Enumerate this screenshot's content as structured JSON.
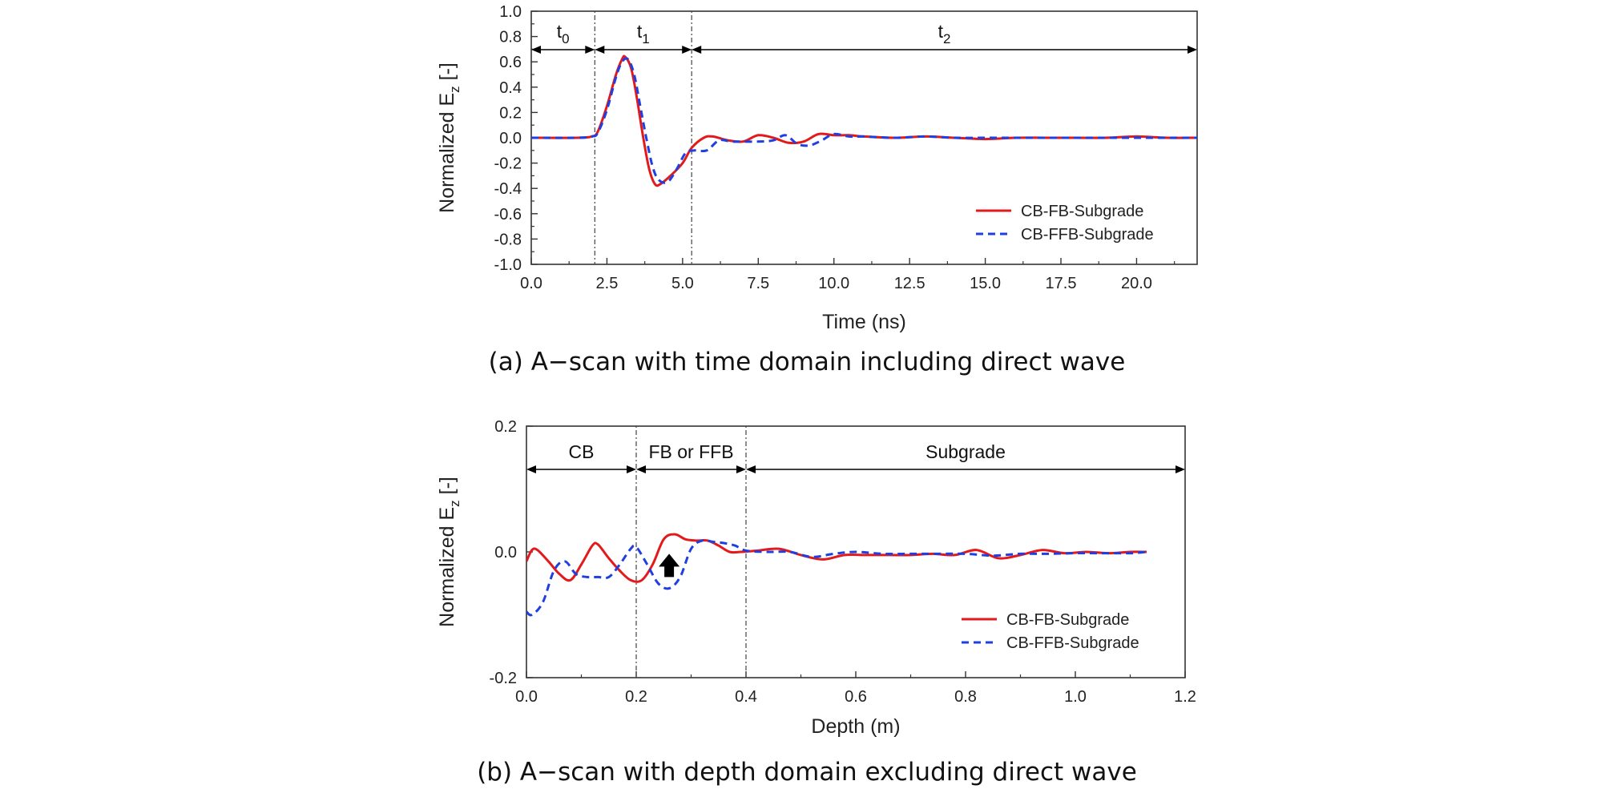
{
  "colors": {
    "series1": "#e31a1c",
    "series2": "#1f3fe0",
    "axis": "#333333",
    "arrow": "#000000"
  },
  "chart_data": [
    {
      "type": "line",
      "title": "",
      "caption": "(a) A−scan with time domain including direct wave",
      "xlabel": "Time (ns)",
      "ylabel_main": "Normalized E",
      "ylabel_sub": "z",
      "ylabel_tail": " [-]",
      "xlim": [
        0,
        22
      ],
      "ylim": [
        -1.0,
        1.0
      ],
      "x_ticks": [
        "0.0",
        "2.5",
        "5.0",
        "7.5",
        "10.0",
        "12.5",
        "15.0",
        "17.5",
        "20.0"
      ],
      "y_ticks": [
        "1.0",
        "0.8",
        "0.6",
        "0.4",
        "0.2",
        "0.0",
        "-0.2",
        "-0.4",
        "-0.6",
        "-0.8",
        "-1.0"
      ],
      "regions": [
        {
          "label": "t",
          "sub": "0",
          "from": 0,
          "to": 2.1
        },
        {
          "label": "t",
          "sub": "1",
          "from": 2.1,
          "to": 5.3
        },
        {
          "label": "t",
          "sub": "2",
          "from": 5.3,
          "to": 22
        }
      ],
      "region_dividers": [
        2.1,
        5.3
      ],
      "legend": {
        "location": "bottom-right",
        "entries": [
          "CB-FB-Subgrade",
          "CB-FFB-Subgrade"
        ]
      },
      "series": [
        {
          "name": "CB-FB-Subgrade",
          "style": "solid",
          "x": [
            0,
            1.5,
            2.0,
            2.2,
            2.5,
            2.8,
            3.0,
            3.1,
            3.3,
            3.5,
            3.7,
            3.9,
            4.1,
            4.3,
            4.6,
            5.0,
            5.3,
            5.7,
            6.0,
            6.5,
            7.0,
            7.5,
            8.0,
            8.5,
            9.0,
            9.5,
            10.0,
            10.5,
            11.0,
            12.0,
            13.0,
            14.0,
            15.0,
            16.0,
            17.0,
            18.0,
            19.0,
            20.0,
            21.0,
            22.0
          ],
          "y": [
            0,
            0,
            0.01,
            0.05,
            0.25,
            0.5,
            0.62,
            0.64,
            0.55,
            0.3,
            0.0,
            -0.25,
            -0.37,
            -0.36,
            -0.3,
            -0.2,
            -0.08,
            0.0,
            0.01,
            -0.02,
            -0.03,
            0.02,
            0.0,
            -0.04,
            -0.03,
            0.03,
            0.02,
            0.02,
            0.01,
            0.0,
            0.01,
            0.0,
            -0.01,
            0.0,
            0.0,
            0.0,
            0.0,
            0.01,
            0.0,
            0.0
          ]
        },
        {
          "name": "CB-FFB-Subgrade",
          "style": "dashed",
          "x": [
            0,
            1.5,
            2.0,
            2.2,
            2.5,
            2.8,
            3.0,
            3.2,
            3.4,
            3.6,
            3.8,
            4.0,
            4.2,
            4.5,
            4.8,
            5.1,
            5.4,
            5.8,
            6.2,
            6.6,
            7.0,
            7.5,
            8.0,
            8.4,
            8.8,
            9.2,
            9.6,
            10.0,
            10.5,
            11.0,
            12.0,
            13.0,
            14.0,
            15.0,
            16.0,
            17.0,
            18.0,
            19.0,
            20.0,
            21.0,
            22.0
          ],
          "y": [
            0,
            0,
            0.01,
            0.04,
            0.22,
            0.48,
            0.6,
            0.62,
            0.5,
            0.25,
            0.0,
            -0.22,
            -0.33,
            -0.35,
            -0.25,
            -0.12,
            -0.1,
            -0.1,
            -0.02,
            -0.03,
            -0.03,
            -0.03,
            -0.02,
            0.02,
            -0.05,
            -0.06,
            -0.02,
            0.03,
            0.01,
            0.01,
            0.0,
            0.01,
            0.0,
            0.0,
            0.0,
            0.0,
            0.0,
            0.0,
            0.0,
            0.0,
            0.0
          ]
        }
      ]
    },
    {
      "type": "line",
      "title": "",
      "caption": "(b) A−scan with depth domain excluding direct wave",
      "xlabel": "Depth (m)",
      "ylabel_main": "Normalized E",
      "ylabel_sub": "z",
      "ylabel_tail": " [-]",
      "xlim": [
        0,
        1.2
      ],
      "ylim": [
        -0.2,
        0.2
      ],
      "x_ticks": [
        "0.0",
        "0.2",
        "0.4",
        "0.6",
        "0.8",
        "1.0",
        "1.2"
      ],
      "y_ticks": [
        "0.2",
        "0.0",
        "-0.2"
      ],
      "regions": [
        {
          "label": "CB",
          "sub": "",
          "from": 0,
          "to": 0.2
        },
        {
          "label": "FB or FFB",
          "sub": "",
          "from": 0.2,
          "to": 0.4
        },
        {
          "label": "Subgrade",
          "sub": "",
          "from": 0.4,
          "to": 1.2
        }
      ],
      "region_dividers": [
        0.2,
        0.4
      ],
      "arrow_annotation": {
        "x": 0.26,
        "y_from": -0.04,
        "y_to": -0.003
      },
      "legend": {
        "location": "bottom-right",
        "entries": [
          "CB-FB-Subgrade",
          "CB-FFB-Subgrade"
        ]
      },
      "series": [
        {
          "name": "CB-FB-Subgrade",
          "style": "solid",
          "x": [
            0,
            0.01,
            0.02,
            0.04,
            0.06,
            0.08,
            0.1,
            0.12,
            0.13,
            0.15,
            0.17,
            0.19,
            0.21,
            0.23,
            0.25,
            0.27,
            0.29,
            0.31,
            0.33,
            0.35,
            0.37,
            0.39,
            0.42,
            0.46,
            0.5,
            0.54,
            0.58,
            0.62,
            0.66,
            0.7,
            0.74,
            0.78,
            0.82,
            0.86,
            0.9,
            0.94,
            0.98,
            1.02,
            1.06,
            1.1,
            1.13
          ],
          "y": [
            -0.015,
            0.003,
            0.003,
            -0.015,
            -0.035,
            -0.045,
            -0.02,
            0.01,
            0.012,
            -0.01,
            -0.03,
            -0.045,
            -0.045,
            -0.02,
            0.02,
            0.028,
            0.02,
            0.018,
            0.018,
            0.01,
            0.0,
            0.0,
            0.002,
            0.005,
            -0.005,
            -0.012,
            -0.005,
            -0.005,
            -0.005,
            -0.005,
            -0.003,
            -0.005,
            0.003,
            -0.01,
            -0.005,
            0.003,
            -0.002,
            0.0,
            -0.002,
            0.0,
            0.0
          ]
        },
        {
          "name": "CB-FFB-Subgrade",
          "style": "dashed",
          "x": [
            0,
            0.01,
            0.03,
            0.05,
            0.07,
            0.09,
            0.11,
            0.13,
            0.15,
            0.17,
            0.19,
            0.2,
            0.22,
            0.24,
            0.26,
            0.28,
            0.3,
            0.32,
            0.34,
            0.36,
            0.38,
            0.4,
            0.44,
            0.48,
            0.52,
            0.56,
            0.6,
            0.65,
            0.7,
            0.75,
            0.8,
            0.85,
            0.9,
            0.95,
            1.0,
            1.05,
            1.1,
            1.13
          ],
          "y": [
            -0.095,
            -0.1,
            -0.08,
            -0.03,
            -0.015,
            -0.035,
            -0.04,
            -0.04,
            -0.04,
            -0.02,
            0.005,
            0.008,
            -0.02,
            -0.05,
            -0.058,
            -0.04,
            0.005,
            0.018,
            0.016,
            0.014,
            0.01,
            0.002,
            0.0,
            0.0,
            -0.008,
            -0.003,
            0.0,
            -0.003,
            -0.003,
            -0.003,
            -0.003,
            -0.006,
            -0.003,
            -0.003,
            -0.002,
            -0.002,
            -0.002,
            0.0
          ]
        }
      ]
    }
  ]
}
